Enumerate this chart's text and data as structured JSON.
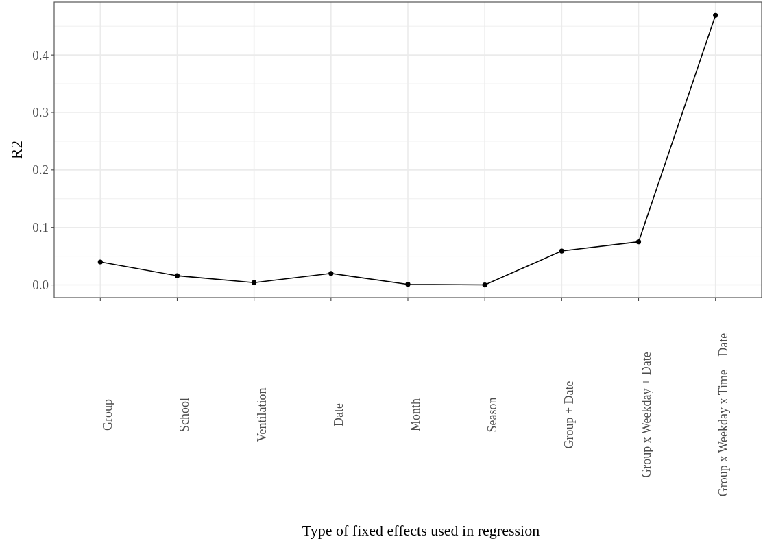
{
  "chart_data": {
    "type": "line",
    "xlabel": "Type of fixed effects used in regression",
    "ylabel": "R2",
    "categories": [
      "Group",
      "School",
      "Ventilation",
      "Date",
      "Month",
      "Season",
      "Group + Date",
      "Group x Weekday + Date",
      "Group x Weekday x Time + Date"
    ],
    "series": [
      {
        "color": "#000000",
        "values": [
          0.04,
          0.016,
          0.004,
          0.02,
          0.001,
          0.0,
          0.059,
          0.075,
          0.469
        ]
      }
    ],
    "ylim": [
      -0.022,
      0.492
    ],
    "yticks": [
      {
        "value": 0,
        "label": "0.0"
      },
      0.1,
      0.2,
      0.3,
      0.4
    ],
    "grid": true,
    "marker": "circle",
    "line_style": "solid"
  }
}
